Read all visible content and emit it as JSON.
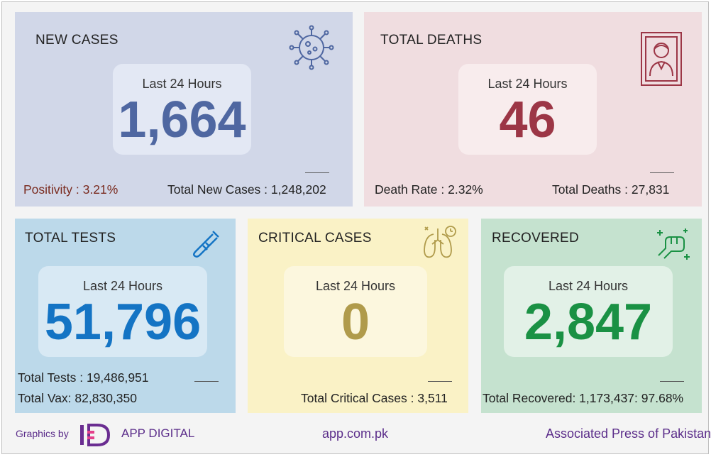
{
  "new_cases": {
    "title": "NEW CASES",
    "period_label": "Last 24 Hours",
    "value": "1,664",
    "positivity": "Positivity : 3.21%",
    "total": "Total New Cases : 1,248,202",
    "icon": "virus-icon"
  },
  "deaths": {
    "title": "TOTAL DEATHS",
    "period_label": "Last 24 Hours",
    "value": "46",
    "rate": "Death Rate : 2.32%",
    "total": "Total Deaths : 27,831",
    "icon": "memorial-portrait-icon"
  },
  "tests": {
    "title": "TOTAL TESTS",
    "period_label": "Last 24 Hours",
    "value": "51,796",
    "total": "Total Tests : 19,486,951",
    "vax": "Total Vax: 82,830,350",
    "icon": "test-tube-icon"
  },
  "critical": {
    "title": "CRITICAL CASES",
    "period_label": "Last 24 Hours",
    "value": "0",
    "total": "Total Critical Cases : 3,511",
    "icon": "lungs-icon"
  },
  "recovered": {
    "title": "RECOVERED",
    "period_label": "Last 24 Hours",
    "value": "2,847",
    "total": "Total Recovered: 1,173,437: 97.68%",
    "icon": "fist-icon"
  },
  "footer": {
    "graphics_by": "Graphics by",
    "brand": "APP DIGITAL",
    "website": "app.com.pk",
    "agency": "Associated Press of Pakistan"
  },
  "colors": {
    "new_cases_value": "#4f67a1",
    "deaths_value": "#9c3646",
    "tests_value": "#1474c4",
    "critical_value": "#b09b4b",
    "recovered_value": "#1a9144",
    "footer_purple": "#5b2d8a"
  }
}
